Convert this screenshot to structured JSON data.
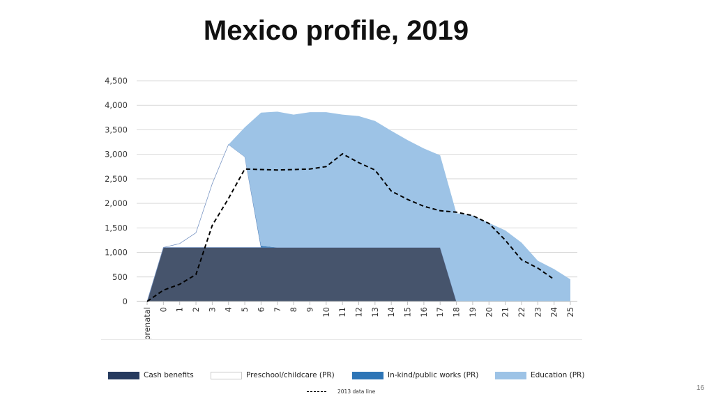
{
  "title": "Mexico profile, 2019",
  "page_number": "16",
  "chart_data": {
    "type": "area",
    "x": [
      "prenatal",
      "0",
      "1",
      "2",
      "3",
      "4",
      "5",
      "6",
      "7",
      "8",
      "9",
      "10",
      "11",
      "12",
      "13",
      "14",
      "15",
      "16",
      "17",
      "18",
      "19",
      "20",
      "21",
      "22",
      "23",
      "24",
      "25"
    ],
    "ylim": [
      0,
      4500
    ],
    "yticks": [
      0,
      500,
      1000,
      1500,
      2000,
      2500,
      3000,
      3500,
      4000,
      4500
    ],
    "ytick_labels": [
      "0",
      "500",
      "1,000",
      "1,500",
      "2,000",
      "2,500",
      "3,000",
      "3,500",
      "4,000",
      "4,500"
    ],
    "grid": true,
    "legend_position": "bottom",
    "series": [
      {
        "name": "Cash benefits",
        "color": "#46546c",
        "values": [
          0,
          1100,
          1100,
          1100,
          1100,
          1100,
          1100,
          1100,
          1100,
          1100,
          1100,
          1100,
          1100,
          1100,
          1100,
          1100,
          1100,
          1100,
          1100,
          0,
          0,
          0,
          0,
          0,
          0,
          0,
          0
        ]
      },
      {
        "name": "Preschool/childcare (PR)",
        "color": "#ffffff",
        "values": [
          0,
          0,
          80,
          300,
          1300,
          2100,
          1850,
          0,
          0,
          0,
          0,
          0,
          0,
          0,
          0,
          0,
          0,
          0,
          0,
          0,
          0,
          0,
          0,
          0,
          0,
          0,
          0
        ]
      },
      {
        "name": "In-kind/public works (PR)",
        "color": "#2e75b6",
        "values": [
          0,
          0,
          0,
          0,
          0,
          0,
          0,
          30,
          0,
          0,
          0,
          0,
          0,
          0,
          0,
          0,
          0,
          0,
          0,
          0,
          0,
          0,
          0,
          0,
          0,
          0,
          0
        ]
      },
      {
        "name": "Education (PR)",
        "color": "#9dc3e6",
        "values": [
          0,
          0,
          0,
          0,
          0,
          0,
          600,
          2720,
          2770,
          2710,
          2760,
          2760,
          2710,
          2680,
          2580,
          2380,
          2190,
          2020,
          1880,
          1800,
          1750,
          1600,
          1450,
          1200,
          830,
          660,
          450
        ]
      }
    ],
    "data_line": {
      "name": "2013 data line",
      "values": [
        0,
        230,
        350,
        550,
        1550,
        2100,
        2700,
        2690,
        2680,
        2690,
        2700,
        2750,
        3010,
        2830,
        2680,
        2250,
        2080,
        1940,
        1850,
        1820,
        1750,
        1590,
        1250,
        850,
        680,
        450,
        null
      ]
    }
  },
  "legend": {
    "items": [
      {
        "label": "Cash benefits",
        "color": "#263a5e",
        "border": "#263a5e"
      },
      {
        "label": "Preschool/childcare (PR)",
        "color": "#ffffff",
        "border": "#c9c9c9"
      },
      {
        "label": "In-kind/public works (PR)",
        "color": "#2e75b6",
        "border": "#2e75b6"
      },
      {
        "label": "Education (PR)",
        "color": "#9dc3e6",
        "border": "#9dc3e6"
      }
    ],
    "data_line_label": "2013 data line"
  }
}
